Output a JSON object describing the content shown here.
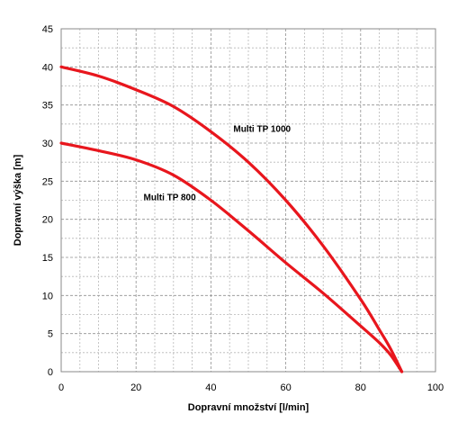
{
  "chart_data": {
    "type": "line",
    "xlabel": "Dopravní množství [l/min]",
    "ylabel": "Dopravní výška [m]",
    "xlim": [
      0,
      100
    ],
    "ylim": [
      0,
      45
    ],
    "x_ticks": [
      0,
      20,
      40,
      60,
      80,
      100
    ],
    "y_ticks": [
      0,
      5,
      10,
      15,
      20,
      25,
      30,
      35,
      40,
      45
    ],
    "x_minor_step": 5,
    "y_minor_step": 2.5,
    "grid": true,
    "line_color": "#e8161d",
    "series": [
      {
        "name": "Multi TP 1000",
        "x": [
          0,
          10,
          20,
          30,
          40,
          50,
          60,
          70,
          80,
          85,
          88,
          91
        ],
        "y": [
          40,
          38.8,
          37,
          34.8,
          31.5,
          27.5,
          22.5,
          16.5,
          9.5,
          5.5,
          3,
          0
        ]
      },
      {
        "name": "Multi TP 800",
        "x": [
          0,
          10,
          20,
          30,
          40,
          50,
          60,
          70,
          80,
          85,
          88,
          91
        ],
        "y": [
          30,
          29,
          27.8,
          25.8,
          22.5,
          18.5,
          14.3,
          10.3,
          6,
          3.8,
          2.2,
          0
        ]
      }
    ],
    "annotations": [
      {
        "text": "Multi TP 1000",
        "x": 46,
        "y": 31.5
      },
      {
        "text": "Multi TP 800",
        "x": 22,
        "y": 22.5
      }
    ]
  }
}
